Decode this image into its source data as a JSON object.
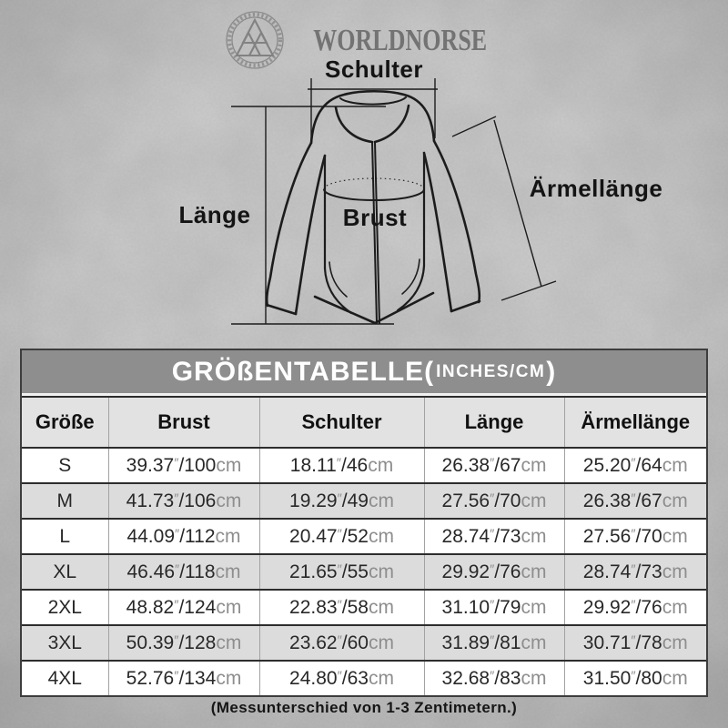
{
  "brand": {
    "name": "WORLDNORSE"
  },
  "diagram": {
    "shoulder_label": "Schulter",
    "length_label": "Länge",
    "chest_label": "Brust",
    "sleeve_label": "Ärmellänge"
  },
  "table": {
    "title": "GRÖßENTABELLE",
    "paren_open": "(",
    "units": "INCHES/CM",
    "paren_close": ")",
    "columns": [
      "Größe",
      "Brust",
      "Schulter",
      "Länge",
      "Ärmellänge"
    ],
    "inch_mark": "″",
    "separator": "/",
    "cm_unit": "cm",
    "rows": [
      {
        "size": "S",
        "chest": {
          "in": "39.37",
          "cm": "100"
        },
        "shoulder": {
          "in": "18.11",
          "cm": "46"
        },
        "length": {
          "in": "26.38",
          "cm": "67"
        },
        "sleeve": {
          "in": "25.20",
          "cm": "64"
        }
      },
      {
        "size": "M",
        "chest": {
          "in": "41.73",
          "cm": "106"
        },
        "shoulder": {
          "in": "19.29",
          "cm": "49"
        },
        "length": {
          "in": "27.56",
          "cm": "70"
        },
        "sleeve": {
          "in": "26.38",
          "cm": "67"
        }
      },
      {
        "size": "L",
        "chest": {
          "in": "44.09",
          "cm": "112"
        },
        "shoulder": {
          "in": "20.47",
          "cm": "52"
        },
        "length": {
          "in": "28.74",
          "cm": "73"
        },
        "sleeve": {
          "in": "27.56",
          "cm": "70"
        }
      },
      {
        "size": "XL",
        "chest": {
          "in": "46.46",
          "cm": "118"
        },
        "shoulder": {
          "in": "21.65",
          "cm": "55"
        },
        "length": {
          "in": "29.92",
          "cm": "76"
        },
        "sleeve": {
          "in": "28.74",
          "cm": "73"
        }
      },
      {
        "size": "2XL",
        "chest": {
          "in": "48.82",
          "cm": "124"
        },
        "shoulder": {
          "in": "22.83",
          "cm": "58"
        },
        "length": {
          "in": "31.10",
          "cm": "79"
        },
        "sleeve": {
          "in": "29.92",
          "cm": "76"
        }
      },
      {
        "size": "3XL",
        "chest": {
          "in": "50.39",
          "cm": "128"
        },
        "shoulder": {
          "in": "23.62",
          "cm": "60"
        },
        "length": {
          "in": "31.89",
          "cm": "81"
        },
        "sleeve": {
          "in": "30.71",
          "cm": "78"
        }
      },
      {
        "size": "4XL",
        "chest": {
          "in": "52.76",
          "cm": "134"
        },
        "shoulder": {
          "in": "24.80",
          "cm": "63"
        },
        "length": {
          "in": "32.68",
          "cm": "83"
        },
        "sleeve": {
          "in": "31.50",
          "cm": "80"
        }
      }
    ]
  },
  "footer": {
    "note": "(Messunterschied von 1-3 Zentimetern.)"
  },
  "colors": {
    "title_band": "#8e8e8e",
    "header_row": "#e2e2e2",
    "row_alt": "#dcdcdc",
    "line_art": "#1c1c1c",
    "muted_unit": "#8e8e8e",
    "brand_gray": "#7a7a7a"
  }
}
